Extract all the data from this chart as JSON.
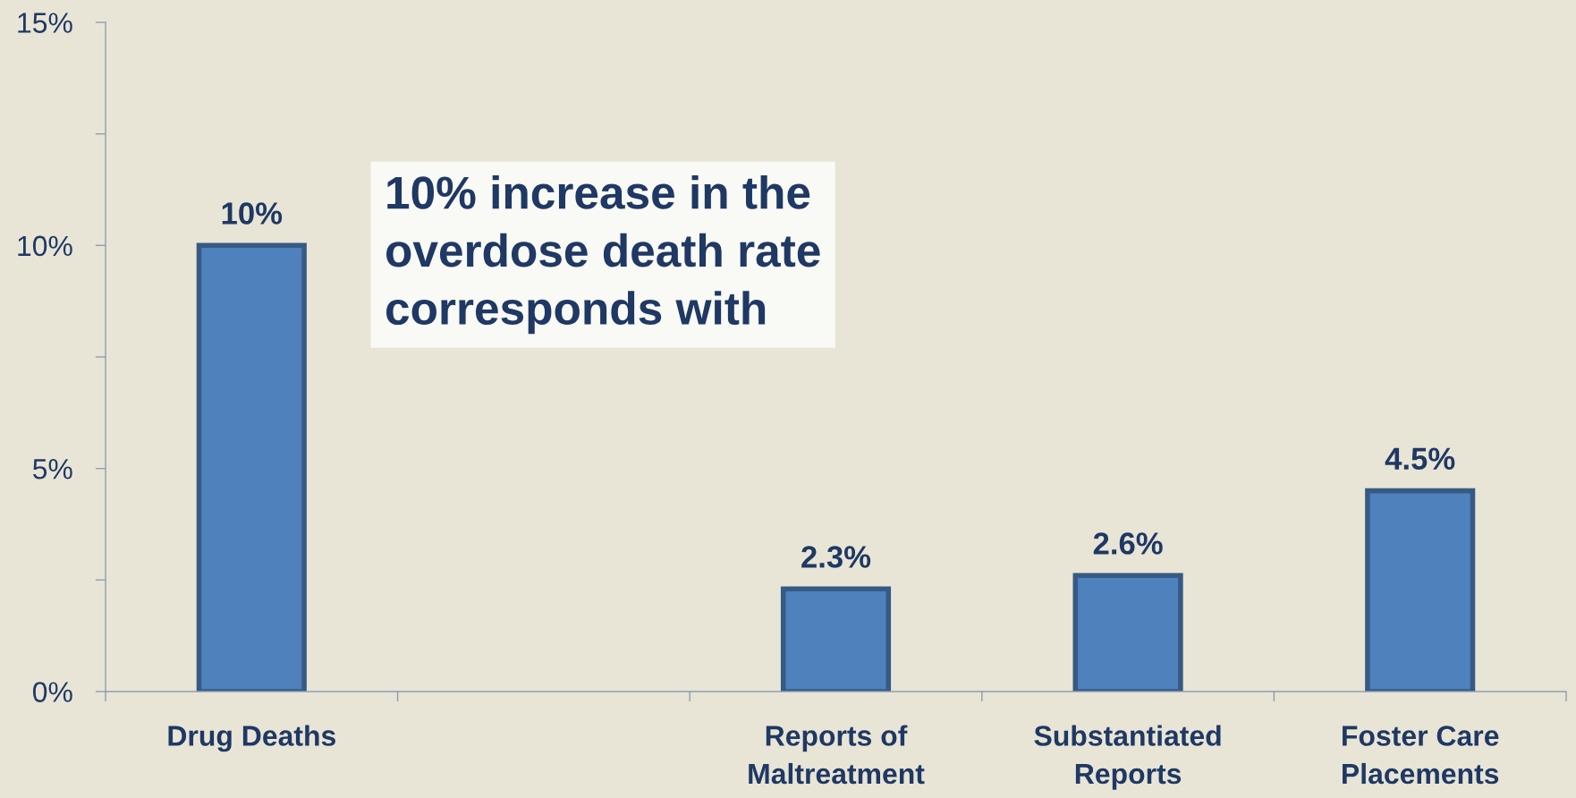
{
  "chart_data": {
    "type": "bar",
    "categories": [
      "Drug Deaths",
      null,
      "Reports of Maltreatment",
      "Substantiated Reports",
      "Foster Care Placements"
    ],
    "series": [
      {
        "color": "#4f81bd",
        "values": [
          10,
          null,
          2.3,
          2.6,
          4.5
        ]
      }
    ],
    "value_labels": [
      "10%",
      null,
      "2.3%",
      "2.6%",
      "4.5%"
    ],
    "ylim": [
      0,
      15
    ],
    "yticks": [
      {
        "value": 0,
        "label": "0%"
      },
      {
        "value": 2.5,
        "label": null
      },
      {
        "value": 5,
        "label": "5%"
      },
      {
        "value": 7.5,
        "label": null
      },
      {
        "value": 10,
        "label": "10%"
      },
      {
        "value": 12.5,
        "label": null
      },
      {
        "value": 15,
        "label": "15%"
      }
    ],
    "annotations": [
      "10% increase in the overdose death rate corresponds with"
    ],
    "grid": false
  }
}
